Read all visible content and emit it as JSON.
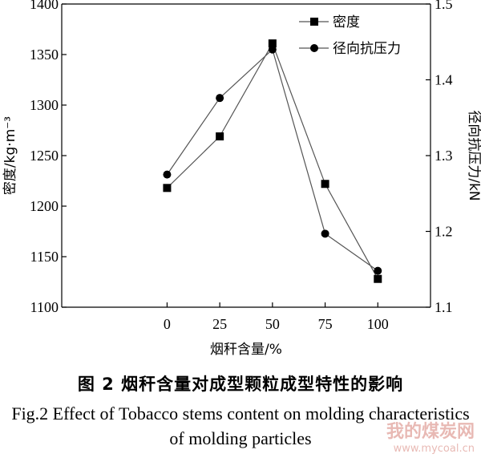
{
  "chart_data": {
    "type": "line",
    "x": [
      0,
      25,
      50,
      75,
      100
    ],
    "x_ticks": [
      "0",
      "25",
      "50",
      "75",
      "100"
    ],
    "xlim": [
      -50,
      125
    ],
    "xlabel": "烟秆含量/%",
    "ylabel_left": "密度/kg·m⁻³",
    "ylabel_right": "径向抗压力/kN",
    "ylim_left": [
      1100,
      1400
    ],
    "yticks_left": [
      1100,
      1150,
      1200,
      1250,
      1300,
      1350,
      1400
    ],
    "ylim_right": [
      1.1,
      1.5
    ],
    "yticks_right": [
      "1.1",
      "1.2",
      "1.3",
      "1.4",
      "1.5"
    ],
    "legend_position": "top-right",
    "grid": false,
    "series": [
      {
        "name": "密度",
        "axis": "left",
        "marker": "square",
        "values": [
          1218,
          1269,
          1361,
          1222,
          1128
        ]
      },
      {
        "name": "径向抗压力",
        "axis": "right",
        "marker": "circle",
        "values": [
          1.275,
          1.376,
          1.44,
          1.197,
          1.148
        ]
      }
    ]
  },
  "caption": {
    "cn": "图 2   烟秆含量对成型颗粒成型特性的影响",
    "en": "Fig.2 Effect of Tobacco stems content on molding characteristics of molding particles"
  },
  "watermark": {
    "text": "我的煤炭网",
    "url": "www.mycoal.cn"
  }
}
